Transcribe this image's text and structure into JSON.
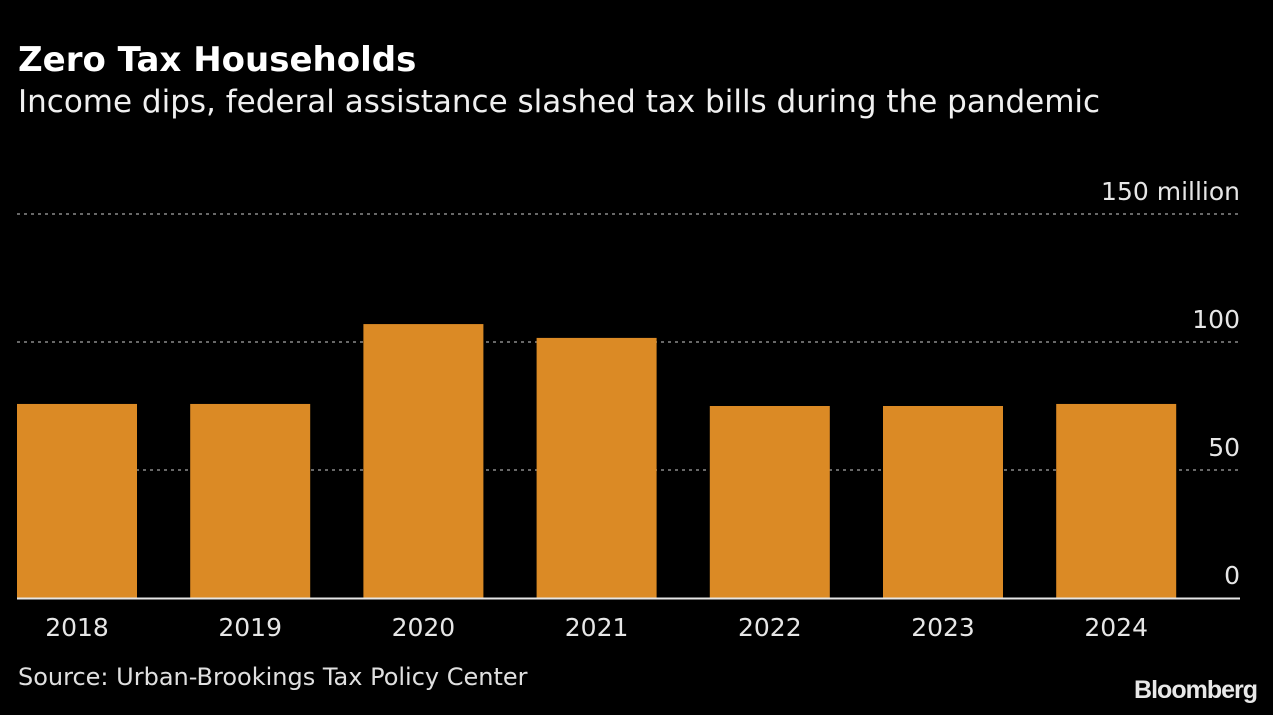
{
  "header": {
    "title": "Zero Tax Households",
    "subtitle": "Income dips, federal assistance slashed tax bills during the pandemic"
  },
  "footer": {
    "source": "Source: Urban-Brookings Tax Policy Center",
    "brand": "Bloomberg"
  },
  "colors": {
    "bar": "#db8a25",
    "background": "#000000",
    "grid": "#8a8a8a",
    "axis": "#e6e6e6"
  },
  "chart_data": {
    "type": "bar",
    "title": "Zero Tax Households",
    "subtitle": "Income dips, federal assistance slashed tax bills during the pandemic",
    "xlabel": "",
    "ylabel": "",
    "categories": [
      "2018",
      "2019",
      "2020",
      "2021",
      "2022",
      "2023",
      "2024"
    ],
    "values": [
      75.8,
      75.8,
      107.0,
      101.6,
      75.0,
      75.0,
      75.8
    ],
    "units": "million households",
    "ylim": [
      0,
      150
    ],
    "yticks": [
      0,
      50,
      100,
      150
    ],
    "ytick_labels": [
      "0",
      "50",
      "100",
      "150 million"
    ],
    "grid": true,
    "legend": "none"
  }
}
